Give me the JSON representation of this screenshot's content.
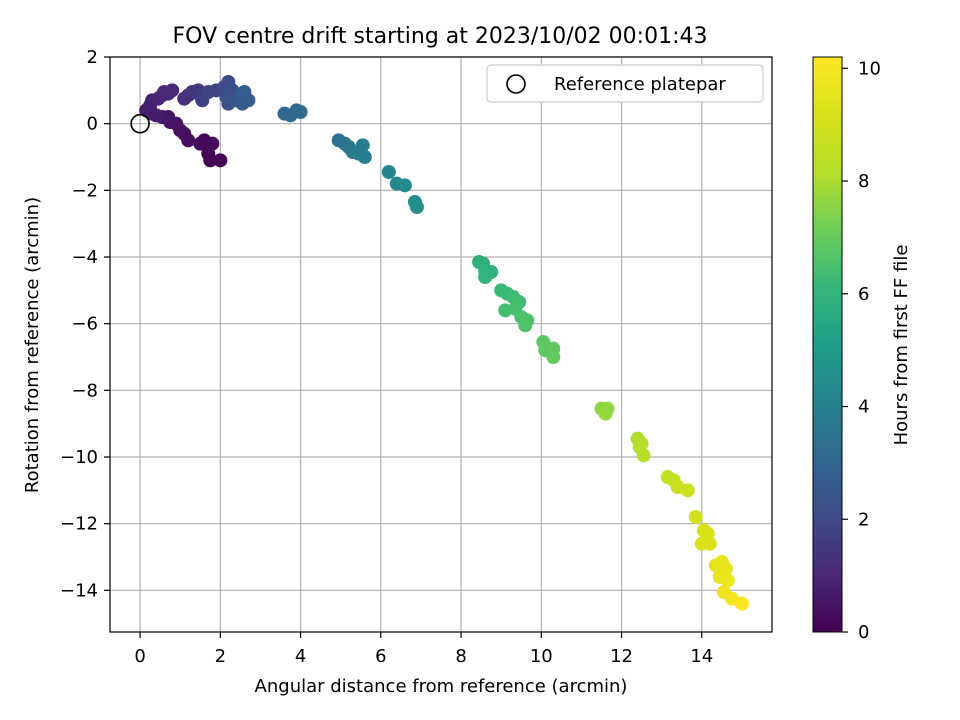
{
  "chart_data": {
    "type": "scatter",
    "title": "FOV centre drift starting at 2023/10/02 00:01:43",
    "xlabel": "Angular distance from reference (arcmin)",
    "ylabel": "Rotation from reference (arcmin)",
    "xlim": [
      -0.75,
      15.75
    ],
    "ylim": [
      -15.25,
      2.0
    ],
    "x_ticks": [
      0,
      2,
      4,
      6,
      8,
      10,
      12,
      14
    ],
    "y_ticks": [
      2,
      0,
      -2,
      -4,
      -6,
      -8,
      -10,
      -12,
      -14
    ],
    "grid": true,
    "legend": {
      "placement": "top-right",
      "entries": [
        {
          "label": "Reference platepar",
          "marker": "open-circle"
        }
      ]
    },
    "reference_point": {
      "x": 0,
      "y": 0
    },
    "colorbar": {
      "label": "Hours from first FF file",
      "min": 0,
      "max": 10.2,
      "ticks": [
        0,
        2,
        4,
        6,
        8,
        10
      ],
      "colormap": "viridis"
    },
    "points": [
      {
        "x": 1.75,
        "y": -1.1,
        "t": 0.0
      },
      {
        "x": 2.0,
        "y": -1.1,
        "t": 0.05
      },
      {
        "x": 1.7,
        "y": -0.9,
        "t": 0.1
      },
      {
        "x": 1.65,
        "y": -0.6,
        "t": 0.15
      },
      {
        "x": 1.5,
        "y": -0.6,
        "t": 0.2
      },
      {
        "x": 1.6,
        "y": -0.5,
        "t": 0.22
      },
      {
        "x": 1.8,
        "y": -0.6,
        "t": 0.25
      },
      {
        "x": 1.2,
        "y": -0.5,
        "t": 0.3
      },
      {
        "x": 1.1,
        "y": -0.3,
        "t": 0.35
      },
      {
        "x": 1.0,
        "y": -0.2,
        "t": 0.4
      },
      {
        "x": 0.9,
        "y": 0.0,
        "t": 0.45
      },
      {
        "x": 0.75,
        "y": 0.05,
        "t": 0.5
      },
      {
        "x": 0.7,
        "y": 0.2,
        "t": 0.55
      },
      {
        "x": 0.55,
        "y": 0.2,
        "t": 0.6
      },
      {
        "x": 0.4,
        "y": 0.25,
        "t": 0.65
      },
      {
        "x": 0.3,
        "y": 0.3,
        "t": 0.7
      },
      {
        "x": 0.15,
        "y": 0.4,
        "t": 0.75
      },
      {
        "x": 0.25,
        "y": 0.55,
        "t": 0.8
      },
      {
        "x": 0.3,
        "y": 0.7,
        "t": 0.85
      },
      {
        "x": 0.45,
        "y": 0.75,
        "t": 0.9
      },
      {
        "x": 0.55,
        "y": 0.85,
        "t": 0.95
      },
      {
        "x": 0.7,
        "y": 0.9,
        "t": 1.0
      },
      {
        "x": 0.6,
        "y": 0.95,
        "t": 1.05
      },
      {
        "x": 0.8,
        "y": 1.0,
        "t": 1.1
      },
      {
        "x": 1.1,
        "y": 0.75,
        "t": 1.2
      },
      {
        "x": 1.2,
        "y": 0.85,
        "t": 1.3
      },
      {
        "x": 1.3,
        "y": 0.95,
        "t": 1.4
      },
      {
        "x": 1.45,
        "y": 1.0,
        "t": 1.5
      },
      {
        "x": 1.5,
        "y": 0.85,
        "t": 1.6
      },
      {
        "x": 1.55,
        "y": 0.7,
        "t": 1.7
      },
      {
        "x": 1.7,
        "y": 0.95,
        "t": 1.8
      },
      {
        "x": 1.9,
        "y": 1.0,
        "t": 1.9
      },
      {
        "x": 2.1,
        "y": 1.1,
        "t": 2.0
      },
      {
        "x": 2.2,
        "y": 1.25,
        "t": 2.1
      },
      {
        "x": 2.3,
        "y": 1.0,
        "t": 2.2
      },
      {
        "x": 2.15,
        "y": 0.8,
        "t": 2.25
      },
      {
        "x": 2.2,
        "y": 0.6,
        "t": 2.3
      },
      {
        "x": 2.4,
        "y": 0.7,
        "t": 2.4
      },
      {
        "x": 2.5,
        "y": 0.85,
        "t": 2.5
      },
      {
        "x": 2.55,
        "y": 0.6,
        "t": 2.6
      },
      {
        "x": 2.7,
        "y": 0.7,
        "t": 2.7
      },
      {
        "x": 2.6,
        "y": 0.95,
        "t": 2.8
      },
      {
        "x": 3.6,
        "y": 0.3,
        "t": 3.0
      },
      {
        "x": 3.75,
        "y": 0.25,
        "t": 3.05
      },
      {
        "x": 3.9,
        "y": 0.4,
        "t": 3.1
      },
      {
        "x": 4.0,
        "y": 0.35,
        "t": 3.15
      },
      {
        "x": 4.95,
        "y": -0.5,
        "t": 3.4
      },
      {
        "x": 5.1,
        "y": -0.6,
        "t": 3.5
      },
      {
        "x": 5.2,
        "y": -0.7,
        "t": 3.6
      },
      {
        "x": 5.3,
        "y": -0.85,
        "t": 3.7
      },
      {
        "x": 5.45,
        "y": -0.9,
        "t": 3.8
      },
      {
        "x": 5.55,
        "y": -0.65,
        "t": 3.85
      },
      {
        "x": 5.6,
        "y": -1.0,
        "t": 3.9
      },
      {
        "x": 6.2,
        "y": -1.45,
        "t": 4.2
      },
      {
        "x": 6.4,
        "y": -1.8,
        "t": 4.3
      },
      {
        "x": 6.6,
        "y": -1.85,
        "t": 4.4
      },
      {
        "x": 6.85,
        "y": -2.35,
        "t": 4.5
      },
      {
        "x": 6.9,
        "y": -2.5,
        "t": 4.55
      },
      {
        "x": 8.45,
        "y": -4.15,
        "t": 5.8
      },
      {
        "x": 8.55,
        "y": -4.2,
        "t": 5.85
      },
      {
        "x": 8.6,
        "y": -4.4,
        "t": 5.9
      },
      {
        "x": 8.75,
        "y": -4.45,
        "t": 5.95
      },
      {
        "x": 8.6,
        "y": -4.6,
        "t": 6.0
      },
      {
        "x": 9.0,
        "y": -5.0,
        "t": 6.2
      },
      {
        "x": 9.15,
        "y": -5.1,
        "t": 6.25
      },
      {
        "x": 9.3,
        "y": -5.2,
        "t": 6.3
      },
      {
        "x": 9.45,
        "y": -5.35,
        "t": 6.35
      },
      {
        "x": 9.1,
        "y": -5.6,
        "t": 6.4
      },
      {
        "x": 9.35,
        "y": -5.55,
        "t": 6.45
      },
      {
        "x": 9.5,
        "y": -5.8,
        "t": 6.5
      },
      {
        "x": 9.65,
        "y": -5.9,
        "t": 6.55
      },
      {
        "x": 9.6,
        "y": -6.05,
        "t": 6.6
      },
      {
        "x": 10.05,
        "y": -6.55,
        "t": 6.8
      },
      {
        "x": 10.1,
        "y": -6.8,
        "t": 6.85
      },
      {
        "x": 10.3,
        "y": -6.75,
        "t": 6.9
      },
      {
        "x": 10.3,
        "y": -7.0,
        "t": 6.95
      },
      {
        "x": 11.5,
        "y": -8.55,
        "t": 7.6
      },
      {
        "x": 11.65,
        "y": -8.55,
        "t": 7.65
      },
      {
        "x": 11.6,
        "y": -8.7,
        "t": 7.7
      },
      {
        "x": 12.4,
        "y": -9.45,
        "t": 8.1
      },
      {
        "x": 12.5,
        "y": -9.6,
        "t": 8.15
      },
      {
        "x": 12.45,
        "y": -9.7,
        "t": 8.2
      },
      {
        "x": 12.55,
        "y": -9.95,
        "t": 8.25
      },
      {
        "x": 13.15,
        "y": -10.6,
        "t": 8.6
      },
      {
        "x": 13.3,
        "y": -10.7,
        "t": 8.65
      },
      {
        "x": 13.4,
        "y": -10.9,
        "t": 8.7
      },
      {
        "x": 13.65,
        "y": -11.0,
        "t": 8.8
      },
      {
        "x": 13.85,
        "y": -11.8,
        "t": 9.0
      },
      {
        "x": 14.05,
        "y": -12.2,
        "t": 9.1
      },
      {
        "x": 14.15,
        "y": -12.3,
        "t": 9.15
      },
      {
        "x": 14.0,
        "y": -12.6,
        "t": 9.2
      },
      {
        "x": 14.2,
        "y": -12.6,
        "t": 9.25
      },
      {
        "x": 14.35,
        "y": -13.25,
        "t": 9.5
      },
      {
        "x": 14.5,
        "y": -13.15,
        "t": 9.55
      },
      {
        "x": 14.6,
        "y": -13.35,
        "t": 9.6
      },
      {
        "x": 14.45,
        "y": -13.6,
        "t": 9.65
      },
      {
        "x": 14.65,
        "y": -13.7,
        "t": 9.7
      },
      {
        "x": 14.55,
        "y": -14.05,
        "t": 9.8
      },
      {
        "x": 14.75,
        "y": -14.25,
        "t": 9.9
      },
      {
        "x": 15.0,
        "y": -14.4,
        "t": 10.1
      }
    ]
  }
}
